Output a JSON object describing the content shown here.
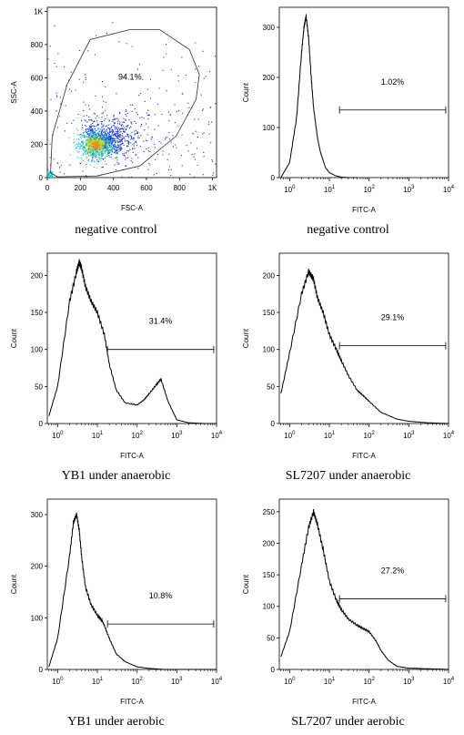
{
  "chart_data": [
    {
      "type": "scatter",
      "xlabel": "FSC-A",
      "ylabel": "SSC-A",
      "xticks": [
        "0",
        "200",
        "400",
        "600",
        "800",
        "1K"
      ],
      "yticks": [
        "0",
        "200",
        "400",
        "600",
        "800",
        "1K"
      ],
      "xlim": [
        0,
        1024
      ],
      "ylim": [
        0,
        1024
      ],
      "gate_percent": "94.1%",
      "gate_polygon": [
        [
          20,
          30
        ],
        [
          30,
          250
        ],
        [
          120,
          560
        ],
        [
          260,
          830
        ],
        [
          500,
          890
        ],
        [
          680,
          890
        ],
        [
          860,
          770
        ],
        [
          920,
          620
        ],
        [
          900,
          470
        ],
        [
          780,
          250
        ],
        [
          560,
          70
        ],
        [
          300,
          10
        ],
        [
          60,
          5
        ]
      ],
      "population_center": [
        290,
        200
      ],
      "caption": "negative control",
      "colors": {
        "low": "#1a2bd6",
        "mid": "#21c4c8",
        "high": "#c6e22a",
        "peak": "#f08a10"
      }
    },
    {
      "type": "line",
      "xlabel": "FITC-A",
      "ylabel": "Count",
      "xscale": "log",
      "xticks": [
        "10^0",
        "10^1",
        "10^2",
        "10^3",
        "10^4"
      ],
      "yticks": [
        "0",
        "100",
        "200",
        "300"
      ],
      "ylim": [
        0,
        340
      ],
      "gate_percent": "1.02%",
      "gate_range": [
        18,
        8500
      ],
      "gate_level": 135,
      "x": [
        0.6,
        1.0,
        1.5,
        2.0,
        2.3,
        2.6,
        3.0,
        3.5,
        4.0,
        5.0,
        6.0,
        8.0,
        10,
        14,
        20,
        30,
        50
      ],
      "values": [
        0,
        30,
        120,
        250,
        300,
        322,
        280,
        200,
        140,
        80,
        50,
        20,
        10,
        4,
        1,
        0,
        0
      ],
      "caption": "negative control"
    },
    {
      "type": "line",
      "xlabel": "FITC-A",
      "ylabel": "Count",
      "xscale": "log",
      "xticks": [
        "10^0",
        "10^1",
        "10^2",
        "10^3",
        "10^4"
      ],
      "yticks": [
        "0",
        "50",
        "100",
        "150",
        "200"
      ],
      "ylim": [
        0,
        230
      ],
      "gate_percent": "31.4%",
      "gate_range": [
        18,
        8500
      ],
      "gate_level": 100,
      "x": [
        0.6,
        1.0,
        2.0,
        3.0,
        3.5,
        4.0,
        5.0,
        7.0,
        10,
        15,
        20,
        30,
        50,
        100,
        150,
        200,
        300,
        400,
        600,
        1000,
        2000,
        5000,
        10000
      ],
      "values": [
        10,
        50,
        165,
        205,
        218,
        210,
        185,
        165,
        150,
        120,
        80,
        45,
        28,
        25,
        32,
        40,
        52,
        60,
        30,
        5,
        1,
        0,
        0
      ],
      "caption": "YB1 under anaerobic"
    },
    {
      "type": "line",
      "xlabel": "FITC-A",
      "ylabel": "Count",
      "xscale": "log",
      "xticks": [
        "10^0",
        "10^1",
        "10^2",
        "10^3",
        "10^4"
      ],
      "yticks": [
        "0",
        "50",
        "100",
        "150",
        "200"
      ],
      "ylim": [
        0,
        230
      ],
      "gate_percent": "29.1%",
      "gate_range": [
        18,
        8500
      ],
      "gate_level": 105,
      "x": [
        0.6,
        1.0,
        2.0,
        3.0,
        4.0,
        5.0,
        7.0,
        10,
        15,
        20,
        30,
        50,
        70,
        100,
        200,
        500,
        1000,
        3000,
        10000
      ],
      "values": [
        40,
        95,
        175,
        205,
        195,
        170,
        150,
        120,
        100,
        85,
        65,
        45,
        38,
        30,
        15,
        6,
        3,
        1,
        0
      ],
      "caption": "SL7207 under anaerobic"
    },
    {
      "type": "line",
      "xlabel": "FITC-A",
      "ylabel": "Count",
      "xscale": "log",
      "xticks": [
        "10^0",
        "10^1",
        "10^2",
        "10^3",
        "10^4"
      ],
      "yticks": [
        "0",
        "100",
        "200",
        "300"
      ],
      "ylim": [
        0,
        330
      ],
      "gate_percent": "10.8%",
      "gate_range": [
        18,
        8500
      ],
      "gate_level": 88,
      "x": [
        0.6,
        1.0,
        2.0,
        2.5,
        3.0,
        3.5,
        4.0,
        5.0,
        7.0,
        10,
        13,
        15,
        20,
        30,
        50,
        100,
        200,
        500,
        1000,
        10000
      ],
      "values": [
        5,
        60,
        220,
        285,
        300,
        270,
        220,
        160,
        125,
        105,
        95,
        85,
        60,
        30,
        15,
        5,
        2,
        0,
        0,
        0
      ],
      "caption": "YB1 under aerobic"
    },
    {
      "type": "line",
      "xlabel": "FITC-A",
      "ylabel": "Count",
      "xscale": "log",
      "xticks": [
        "10^0",
        "10^1",
        "10^2",
        "10^3",
        "10^4"
      ],
      "yticks": [
        "0",
        "50",
        "100",
        "150",
        "200",
        "250"
      ],
      "ylim": [
        0,
        270
      ],
      "gate_percent": "27.2%",
      "gate_range": [
        18,
        8500
      ],
      "gate_level": 112,
      "x": [
        0.6,
        1.0,
        2.0,
        3.0,
        4.0,
        5.0,
        7.0,
        10,
        15,
        20,
        30,
        50,
        70,
        100,
        150,
        200,
        300,
        500,
        1000,
        10000
      ],
      "values": [
        20,
        60,
        165,
        225,
        250,
        230,
        190,
        140,
        110,
        95,
        80,
        70,
        65,
        60,
        45,
        30,
        15,
        5,
        2,
        0
      ],
      "caption": "SL7207 under aerobic"
    }
  ]
}
